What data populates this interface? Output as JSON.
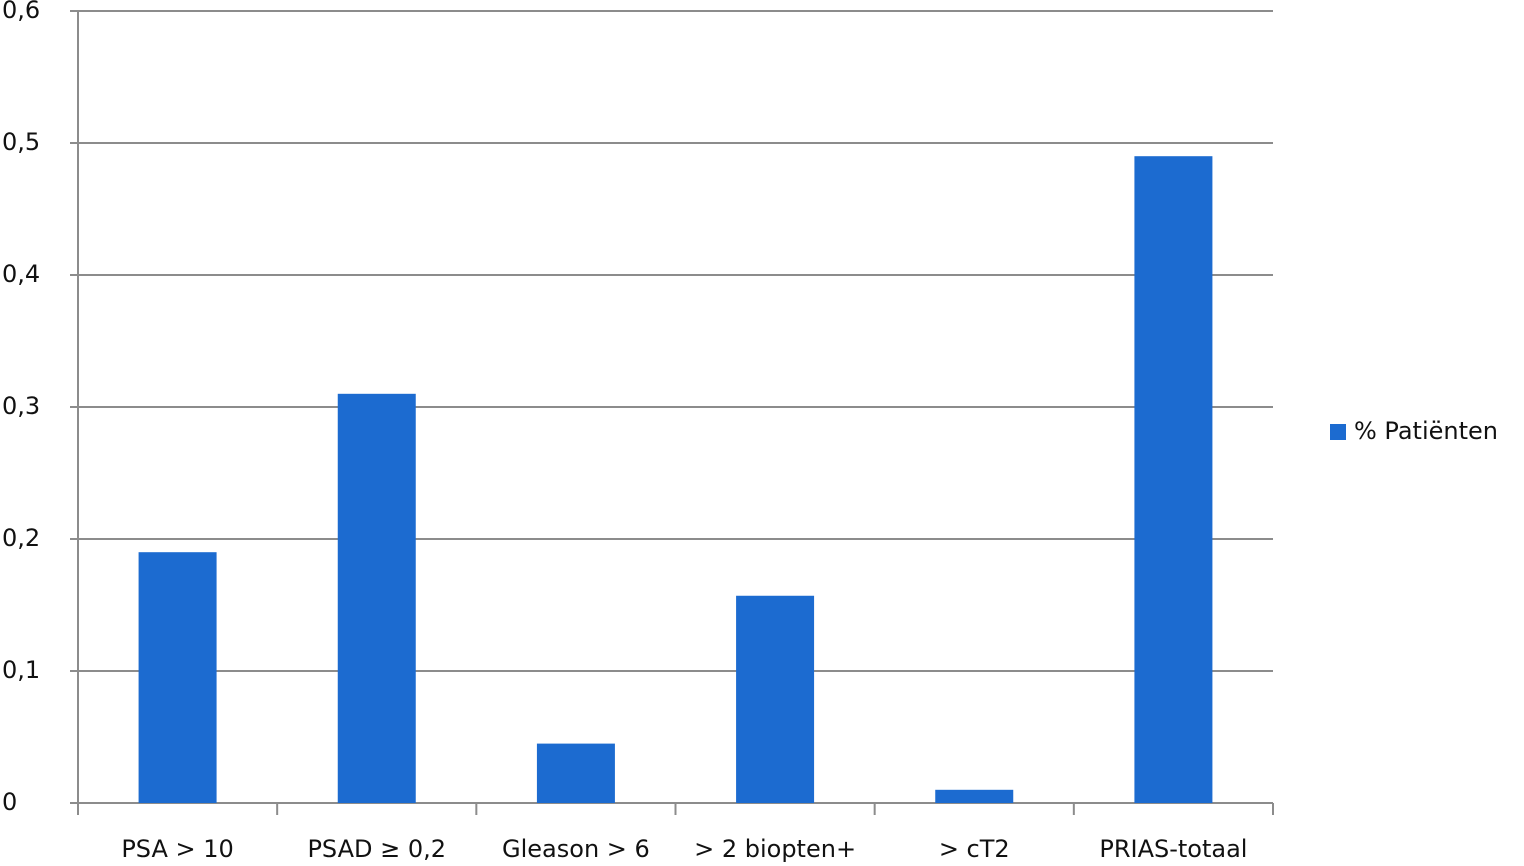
{
  "chart_data": {
    "type": "bar",
    "categories": [
      "PSA > 10",
      "PSAD ≥ 0,2",
      "Gleason > 6",
      "> 2 biopten+",
      "> cT2",
      "PRIAS-totaal"
    ],
    "series": [
      {
        "name": "% Patiënten",
        "color": "#1c6bd0",
        "values": [
          0.19,
          0.31,
          0.045,
          0.157,
          0.01,
          0.49
        ]
      }
    ],
    "ylim": [
      0,
      0.6
    ],
    "yticks": [
      0,
      {
        "value": 0.1,
        "label": "0,1"
      },
      {
        "value": 0.2,
        "label": "0,2"
      },
      {
        "value": 0.3,
        "label": "0,3"
      },
      {
        "value": 0.4,
        "label": "0,4"
      },
      {
        "value": 0.5,
        "label": "0,5"
      },
      {
        "value": 0.6,
        "label": "0,6"
      }
    ],
    "grid": true,
    "legend": "right"
  }
}
